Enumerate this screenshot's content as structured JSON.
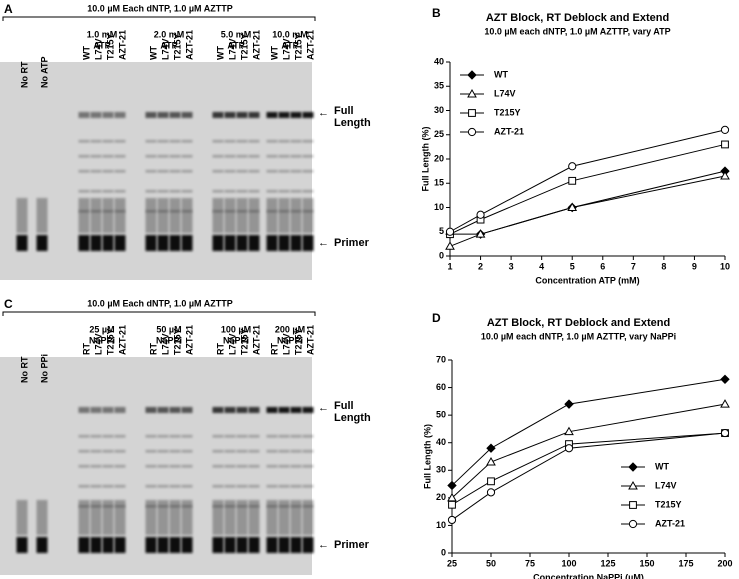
{
  "gels": [
    {
      "panel": "A",
      "header": "10.0 µM Each dNTP, 1.0 µM AZTTP",
      "lanes": [
        "No RT",
        "No ATP"
      ],
      "groups": [
        {
          "label": [
            "1.0 mM",
            "ATP"
          ],
          "lanes": [
            "WT",
            "L74V",
            "T215Y",
            "AZT-21"
          ]
        },
        {
          "label": [
            "2.0 mM",
            "ATP"
          ],
          "lanes": [
            "WT",
            "L74V",
            "T215Y",
            "AZT-21"
          ]
        },
        {
          "label": [
            "5.0 mM",
            "ATP"
          ],
          "lanes": [
            "WT",
            "L74V",
            "T215Y",
            "AZT-21"
          ]
        },
        {
          "label": [
            "10.0 mM",
            "ATP"
          ],
          "lanes": [
            "WT",
            "L74V",
            "T215Y",
            "AZT-21"
          ]
        }
      ],
      "full_length": [
        "Full",
        "Length"
      ],
      "primer": "Primer"
    },
    {
      "panel": "C",
      "header": "10.0 µM Each dNTP, 1.0 µM AZTTP",
      "lanes": [
        "No RT",
        "No PPi"
      ],
      "groups": [
        {
          "label": [
            "25 µM",
            "NaPPi"
          ],
          "lanes": [
            "RT",
            "L74V",
            "T215Y",
            "AZT-21"
          ]
        },
        {
          "label": [
            "50 µM",
            "NaPPi"
          ],
          "lanes": [
            "RT",
            "L74V",
            "T215Y",
            "AZT-21"
          ]
        },
        {
          "label": [
            "100 µM",
            "NaPPi"
          ],
          "lanes": [
            "RT",
            "L74V",
            "T215Y",
            "AZT-21"
          ]
        },
        {
          "label": [
            "200 µM",
            "NaPPi"
          ],
          "lanes": [
            "RT",
            "L74V",
            "T215Y",
            "AZT-21"
          ]
        }
      ],
      "full_length": [
        "Full",
        "Length"
      ],
      "primer": "Primer"
    }
  ],
  "chart_data": [
    {
      "type": "line",
      "panel": "B",
      "title": "AZT Block, RT Deblock and Extend",
      "subtitle": "10.0 µM each dNTP, 1.0 µM AZTTP, vary ATP",
      "xlabel": "Concentration ATP (mM)",
      "ylabel": "Full Length (%)",
      "x": [
        1,
        2,
        5,
        10
      ],
      "xlim": [
        1,
        10
      ],
      "xticks": [
        1,
        2,
        3,
        4,
        5,
        6,
        7,
        8,
        9,
        10
      ],
      "ylim": [
        0,
        40
      ],
      "yticks": [
        0,
        5,
        10,
        15,
        20,
        25,
        30,
        35,
        40
      ],
      "legend": "upper left",
      "series": [
        {
          "name": "WT",
          "marker": "diamond",
          "color": "#000000",
          "values": [
            4.5,
            4.5,
            10,
            17.5
          ]
        },
        {
          "name": "L74V",
          "marker": "triangle",
          "color": "#000000",
          "values": [
            2,
            4.5,
            10,
            16.5
          ]
        },
        {
          "name": "T215Y",
          "marker": "square",
          "color": "#000000",
          "values": [
            4.5,
            7.5,
            15.5,
            23
          ]
        },
        {
          "name": "AZT-21",
          "marker": "circle",
          "color": "#000000",
          "values": [
            5,
            8.5,
            18.5,
            26
          ]
        }
      ]
    },
    {
      "type": "line",
      "panel": "D",
      "title": "AZT Block, RT Deblock and Extend",
      "subtitle": "10.0 µM each dNTP, 1.0 µM AZTTP, vary NaPPi",
      "xlabel": "Concentration NaPPi (µM)",
      "ylabel": "Full Length (%)",
      "x": [
        25,
        50,
        100,
        200
      ],
      "xlim": [
        25,
        200
      ],
      "xticks": [
        25,
        50,
        75,
        100,
        125,
        150,
        175,
        200
      ],
      "ylim": [
        0,
        70
      ],
      "yticks": [
        0,
        10,
        20,
        30,
        40,
        50,
        60,
        70
      ],
      "legend": "lower right",
      "series": [
        {
          "name": "WT",
          "marker": "diamond",
          "color": "#000000",
          "values": [
            24.5,
            38,
            54,
            63
          ]
        },
        {
          "name": "L74V",
          "marker": "triangle",
          "color": "#000000",
          "values": [
            20,
            33,
            44,
            54
          ]
        },
        {
          "name": "T215Y",
          "marker": "square",
          "color": "#000000",
          "values": [
            17.5,
            26,
            39.5,
            43.5
          ]
        },
        {
          "name": "AZT-21",
          "marker": "circle",
          "color": "#000000",
          "values": [
            12,
            22,
            38,
            43.5
          ]
        }
      ]
    }
  ]
}
